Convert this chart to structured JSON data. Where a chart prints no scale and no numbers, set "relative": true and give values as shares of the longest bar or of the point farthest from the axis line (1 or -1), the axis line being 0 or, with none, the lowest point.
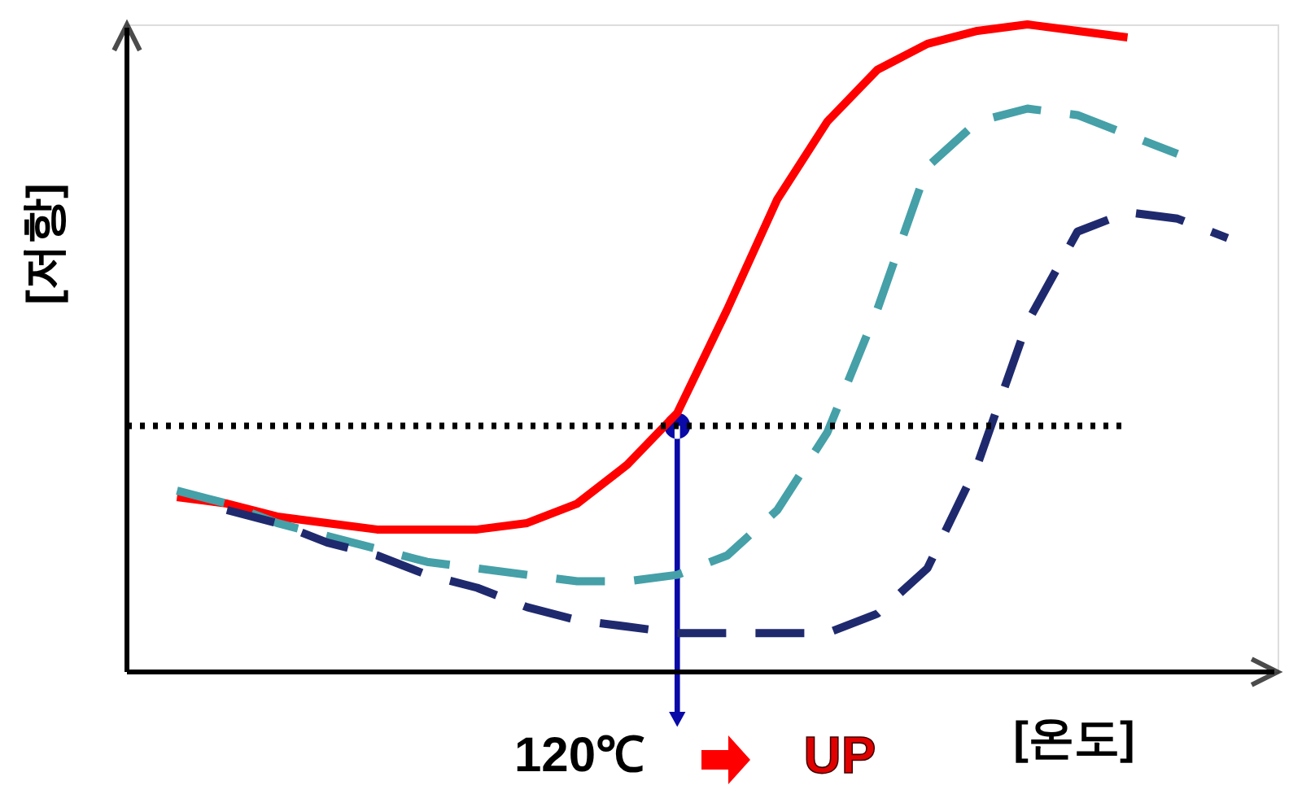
{
  "chart_data": {
    "type": "line",
    "relative": true,
    "xlabel": "[온도]",
    "ylabel": "[저항]",
    "grid": false,
    "categories": [
      null,
      null,
      null,
      null,
      null,
      null,
      null,
      null,
      null,
      null,
      null,
      null,
      null,
      null,
      null,
      null,
      null,
      null,
      null,
      null,
      null,
      null
    ],
    "series": [
      {
        "color": "#ff0000",
        "line_style": "solid",
        "values": [
          0.27,
          0.26,
          0.24,
          0.23,
          0.22,
          0.22,
          0.22,
          0.23,
          0.26,
          0.32,
          0.4,
          0.56,
          0.73,
          0.85,
          0.93,
          0.97,
          0.99,
          1.0,
          0.99,
          0.98,
          null,
          null
        ]
      },
      {
        "color": "#45a0a8",
        "line_style": "dashed",
        "values": [
          0.28,
          0.26,
          0.23,
          0.21,
          0.19,
          0.17,
          0.16,
          0.15,
          0.14,
          0.14,
          0.15,
          0.18,
          0.25,
          0.37,
          0.56,
          0.78,
          0.85,
          0.87,
          0.86,
          0.83,
          0.8,
          null
        ]
      },
      {
        "color": "#1f2a6e",
        "line_style": "dashed",
        "values": [
          null,
          0.25,
          0.23,
          0.2,
          0.18,
          0.15,
          0.13,
          0.1,
          0.08,
          0.07,
          0.06,
          0.06,
          0.06,
          0.06,
          0.09,
          0.16,
          0.32,
          0.54,
          0.68,
          0.71,
          0.7,
          0.67
        ]
      }
    ],
    "ref_lines": [
      {
        "axis": "y",
        "value": 0.38,
        "color": "#000000",
        "line_style": "dotted"
      }
    ],
    "annotations": [
      "120℃",
      "UP"
    ],
    "legend": false
  }
}
